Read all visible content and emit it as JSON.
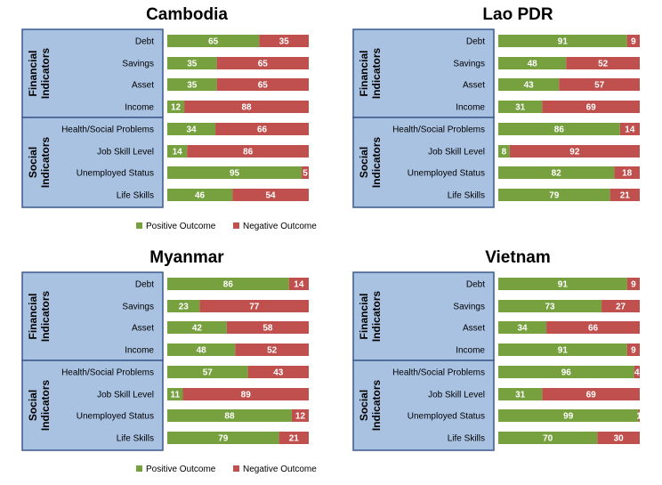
{
  "colors": {
    "positive": "#76A13E",
    "negative": "#C0504D",
    "panel": "#A9C2E2",
    "panel_border": "#3B5A8C"
  },
  "chart_data": [
    {
      "type": "bar",
      "stacked": true,
      "orientation": "horizontal",
      "title": "Cambodia",
      "categories": [
        "Debt",
        "Savings",
        "Asset",
        "Income",
        "Health/Social Problems",
        "Job Skill Level",
        "Unemployed Status",
        "Life Skills"
      ],
      "groups": [
        {
          "label": [
            "Financial",
            "Indicators"
          ],
          "categories": [
            "Debt",
            "Savings",
            "Asset",
            "Income"
          ]
        },
        {
          "label": [
            "Social",
            "Indicators"
          ],
          "categories": [
            "Health/Social Problems",
            "Job Skill Level",
            "Unemployed Status",
            "Life Skills"
          ]
        }
      ],
      "series": [
        {
          "name": "Positive Outcome",
          "values": [
            65,
            35,
            35,
            12,
            34,
            14,
            95,
            46
          ]
        },
        {
          "name": "Negative Outcome",
          "values": [
            35,
            65,
            65,
            88,
            66,
            86,
            5,
            54
          ]
        }
      ],
      "xlim": [
        0,
        100
      ],
      "legend": "bottom"
    },
    {
      "type": "bar",
      "stacked": true,
      "orientation": "horizontal",
      "title": "Lao PDR",
      "categories": [
        "Debt",
        "Savings",
        "Asset",
        "Income",
        "Health/Social Problems",
        "Job Skill Level",
        "Unemployed Status",
        "Life Skills"
      ],
      "groups": [
        {
          "label": [
            "Financial",
            "Indicators"
          ],
          "categories": [
            "Debt",
            "Savings",
            "Asset",
            "Income"
          ]
        },
        {
          "label": [
            "Social",
            "Indicators"
          ],
          "categories": [
            "Health/Social Problems",
            "Job Skill Level",
            "Unemployed Status",
            "Life Skills"
          ]
        }
      ],
      "series": [
        {
          "name": "Positive Outcome",
          "values": [
            91,
            48,
            43,
            31,
            86,
            8,
            82,
            79
          ]
        },
        {
          "name": "Negative Outcome",
          "values": [
            9,
            52,
            57,
            69,
            14,
            92,
            18,
            21
          ]
        }
      ],
      "xlim": [
        0,
        100
      ],
      "legend": "none"
    },
    {
      "type": "bar",
      "stacked": true,
      "orientation": "horizontal",
      "title": "Myanmar",
      "categories": [
        "Debt",
        "Savings",
        "Asset",
        "Income",
        "Health/Social Problems",
        "Job Skill Level",
        "Unemployed Status",
        "Life Skills"
      ],
      "groups": [
        {
          "label": [
            "Financial",
            "Indicators"
          ],
          "categories": [
            "Debt",
            "Savings",
            "Asset",
            "Income"
          ]
        },
        {
          "label": [
            "Social",
            "Indicators"
          ],
          "categories": [
            "Health/Social Problems",
            "Job Skill Level",
            "Unemployed Status",
            "Life Skills"
          ]
        }
      ],
      "series": [
        {
          "name": "Positive Outcome",
          "values": [
            86,
            23,
            42,
            48,
            57,
            11,
            88,
            79
          ]
        },
        {
          "name": "Negative Outcome",
          "values": [
            14,
            77,
            58,
            52,
            43,
            89,
            12,
            21
          ]
        }
      ],
      "xlim": [
        0,
        100
      ],
      "legend": "bottom"
    },
    {
      "type": "bar",
      "stacked": true,
      "orientation": "horizontal",
      "title": "Vietnam",
      "categories": [
        "Debt",
        "Savings",
        "Asset",
        "Income",
        "Health/Social Problems",
        "Job Skill Level",
        "Unemployed Status",
        "Life Skills"
      ],
      "groups": [
        {
          "label": [
            "Financial",
            "Indicators"
          ],
          "categories": [
            "Debt",
            "Savings",
            "Asset",
            "Income"
          ]
        },
        {
          "label": [
            "Social",
            "Indicators"
          ],
          "categories": [
            "Health/Social Problems",
            "Job Skill Level",
            "Unemployed Status",
            "Life Skills"
          ]
        }
      ],
      "series": [
        {
          "name": "Positive Outcome",
          "values": [
            91,
            73,
            34,
            91,
            96,
            31,
            99,
            70
          ]
        },
        {
          "name": "Negative Outcome",
          "values": [
            9,
            27,
            66,
            9,
            4,
            69,
            1,
            30
          ]
        }
      ],
      "xlim": [
        0,
        100
      ],
      "legend": "none"
    }
  ]
}
